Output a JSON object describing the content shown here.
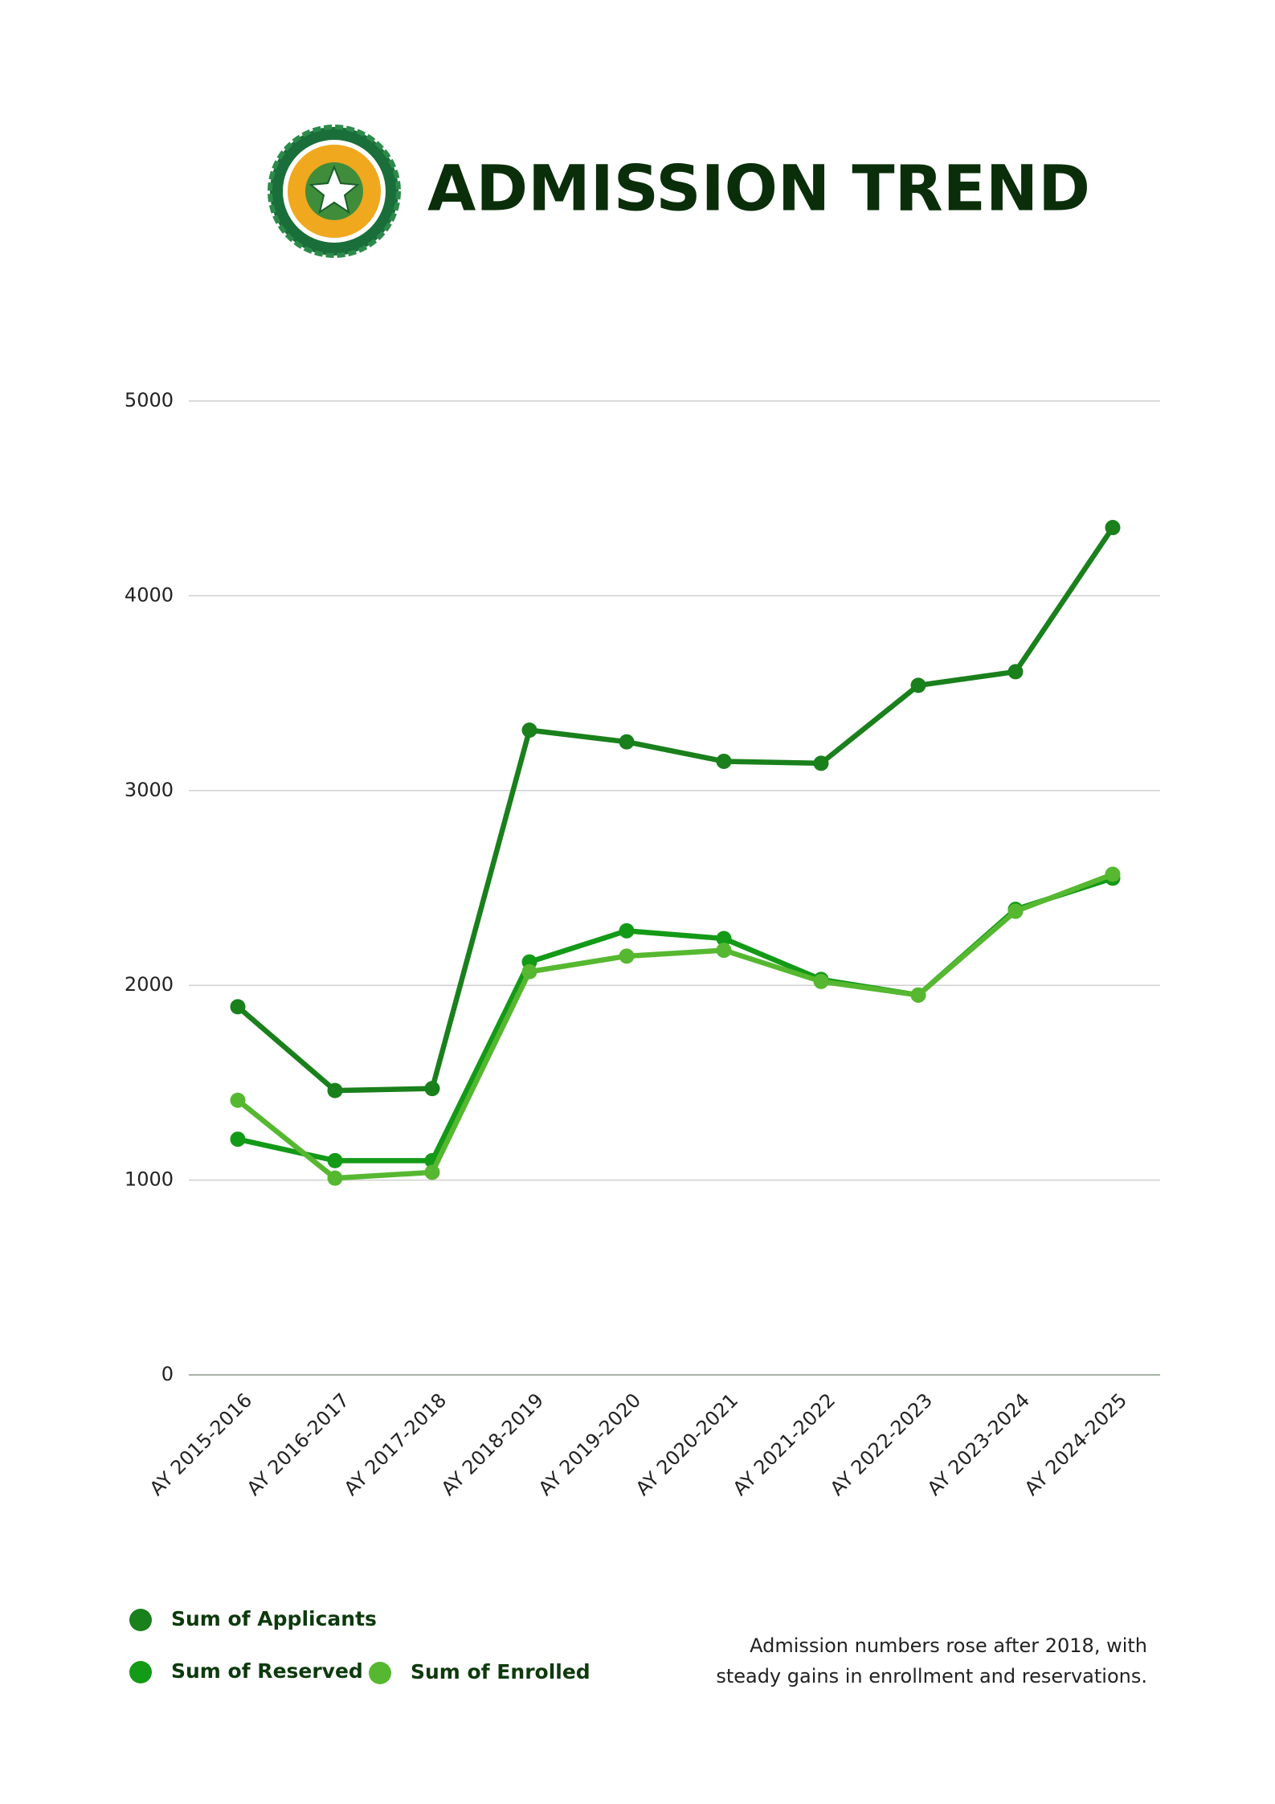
{
  "chart_data": {
    "type": "line",
    "title": "ADMISSION TREND",
    "categories": [
      "AY 2015-2016",
      "AY 2016-2017",
      "AY 2017-2018",
      "AY 2018-2019",
      "AY 2019-2020",
      "AY 2020-2021",
      "AY 2021-2022",
      "AY 2022-2023",
      "AY 2023-2024",
      "AY 2024-2025"
    ],
    "series": [
      {
        "name": "Sum of Applicants",
        "color": "#19801c",
        "values": [
          1890,
          1460,
          1470,
          3310,
          3250,
          3150,
          3140,
          3540,
          3610,
          4350
        ]
      },
      {
        "name": "Sum of Reserved",
        "color": "#139a17",
        "values": [
          1210,
          1100,
          1100,
          2120,
          2280,
          2240,
          2030,
          1950,
          2390,
          2550
        ]
      },
      {
        "name": "Sum of Enrolled",
        "color": "#56b830",
        "values": [
          1410,
          1010,
          1040,
          2070,
          2150,
          2180,
          2020,
          1950,
          2380,
          2570
        ]
      }
    ],
    "ylim": [
      0,
      5000
    ],
    "yticks": [
      0,
      1000,
      2000,
      3000,
      4000,
      5000
    ],
    "grid": true,
    "annotation": [
      "Admission numbers rose after 2018, with",
      "steady gains in enrollment and reservations."
    ]
  }
}
